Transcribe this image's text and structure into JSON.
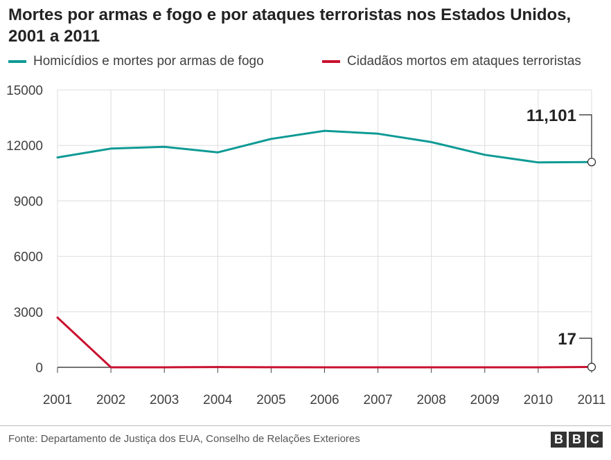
{
  "title": "Mortes por armas e fogo e por ataques terroristas nos Estados Unidos, 2001 a 2011",
  "source": "Fonte: Departamento de Justiça dos EUA, Conselho de Relações Exteriores",
  "logo": [
    "B",
    "B",
    "C"
  ],
  "chart_data": {
    "type": "line",
    "title": "Mortes por armas e fogo e por ataques terroristas nos Estados Unidos, 2001 a 2011",
    "xlabel": "",
    "ylabel": "",
    "x": [
      "2001",
      "2002",
      "2003",
      "2004",
      "2005",
      "2006",
      "2007",
      "2008",
      "2009",
      "2010",
      "2011"
    ],
    "ylim": [
      0,
      15000
    ],
    "yticks": [
      "0",
      "3000",
      "6000",
      "9000",
      "12000",
      "15000"
    ],
    "grid": true,
    "legend_position": "top",
    "series": [
      {
        "name": "Homicídios e mortes por armas de fogo",
        "color": "#0e9a95",
        "values": [
          11348,
          11829,
          11920,
          11624,
          12352,
          12791,
          12632,
          12179,
          11493,
          11078,
          11101
        ],
        "end_label": "11,101"
      },
      {
        "name": "Cidadãos mortos em ataques terroristas",
        "color": "#c8102e",
        "values": [
          2689,
          0,
          0,
          14,
          3,
          0,
          0,
          0,
          0,
          0,
          17
        ],
        "end_label": "17"
      }
    ]
  }
}
